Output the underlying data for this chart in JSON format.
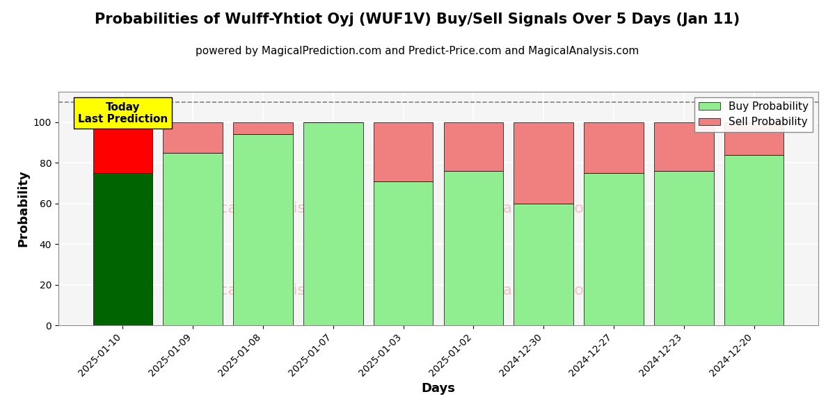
{
  "title": "Probabilities of Wulff-Yhtiot Oyj (WUF1V) Buy/Sell Signals Over 5 Days (Jan 11)",
  "subtitle": "powered by MagicalPrediction.com and Predict-Price.com and MagicalAnalysis.com",
  "xlabel": "Days",
  "ylabel": "Probability",
  "dates": [
    "2025-01-10",
    "2025-01-09",
    "2025-01-08",
    "2025-01-07",
    "2025-01-03",
    "2025-01-02",
    "2024-12-30",
    "2024-12-27",
    "2024-12-23",
    "2024-12-20"
  ],
  "buy_probs": [
    75,
    85,
    94,
    100,
    71,
    76,
    60,
    75,
    76,
    84
  ],
  "sell_probs": [
    25,
    15,
    6,
    0,
    29,
    24,
    40,
    25,
    24,
    16
  ],
  "today_buy_color": "#006400",
  "today_sell_color": "#ff0000",
  "buy_color": "#90EE90",
  "sell_color": "#F08080",
  "today_annotation": "Today\nLast Prediction",
  "ylim": [
    0,
    115
  ],
  "dashed_line_y": 110,
  "bar_width": 0.85,
  "background_color": "#ffffff",
  "plot_bg_color": "#f5f5f5",
  "grid_color": "#ffffff",
  "watermark_color": "#F08080",
  "title_fontsize": 15,
  "subtitle_fontsize": 11,
  "axis_label_fontsize": 13,
  "tick_fontsize": 10,
  "legend_fontsize": 11
}
